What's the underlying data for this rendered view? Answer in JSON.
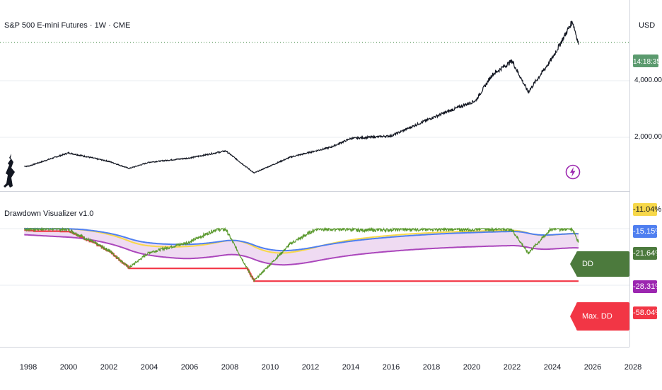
{
  "main_pane": {
    "title": "S&P 500 E-mini Futures · 1W · CME",
    "currency": "USD",
    "price_labels": [
      "4,000.00",
      "2,000.00"
    ],
    "countdown": "14:18:35"
  },
  "indicator_pane": {
    "title": "Drawdown Visualizer v1.0",
    "dd_tag": "DD (-21.64%)",
    "max_dd_tag": "Max. DD (-58.04%)",
    "scale_badges": [
      {
        "label": "-11.04%",
        "color": "#f7d84a",
        "text_color": "#131722"
      },
      {
        "label": "-15.15%",
        "color": "#4f7ff0",
        "text_color": "#ffffff"
      },
      {
        "label": "-21.64%",
        "color": "#4c7a3d",
        "text_color": "#ffffff"
      },
      {
        "label": "-28.31%",
        "color": "#9c27b0",
        "text_color": "#ffffff"
      },
      {
        "label": "-58.04%",
        "color": "#f23645",
        "text_color": "#ffffff"
      }
    ]
  },
  "time_axis": {
    "labels": [
      "1998",
      "2000",
      "2002",
      "2004",
      "2006",
      "2008",
      "2010",
      "2012",
      "2014",
      "2016",
      "2018",
      "2020",
      "2022",
      "2024",
      "2026",
      "2028"
    ]
  },
  "colors": {
    "price_line": "#131722",
    "drawdown": "#5b9a2f",
    "short_ma": "#f7d84a",
    "long_ma": "#4f7ff0",
    "lower_band": "#ab47bc",
    "fill": "#e1bee7",
    "max_dd": "#f23645"
  },
  "chart_data": {
    "type": "line",
    "x": [
      1998,
      2000,
      2002,
      2003,
      2004,
      2006,
      2007.8,
      2009.2,
      2011,
      2013,
      2014,
      2016,
      2018,
      2020.2,
      2021,
      2022,
      2022.8,
      2024,
      2025,
      2025.3
    ],
    "series": [
      {
        "name": "S&P 500 E-mini Futures",
        "values": [
          980,
          1450,
          1150,
          900,
          1120,
          1270,
          1520,
          740,
          1300,
          1650,
          1960,
          2050,
          2680,
          3300,
          4200,
          4700,
          3600,
          4800,
          6100,
          5300
        ]
      }
    ],
    "y_ticks": [
      2000,
      4000
    ],
    "drawdown_readings": {
      "DD": -21.64,
      "Max. DD": -58.04
    }
  }
}
